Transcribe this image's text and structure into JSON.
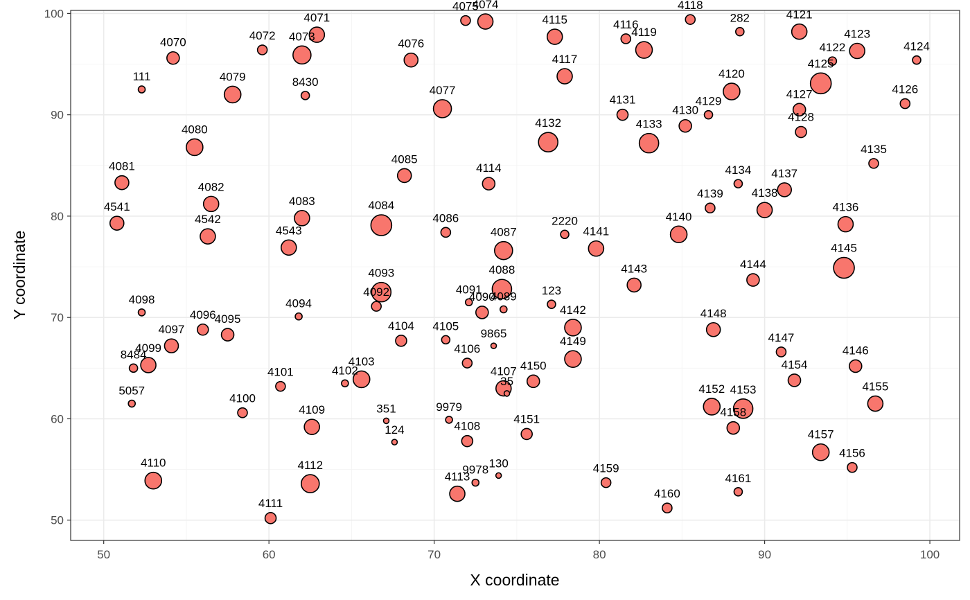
{
  "chart_data": {
    "type": "scatter",
    "title": "",
    "xlabel": "X coordinate",
    "ylabel": "Y coordinate",
    "xlim": [
      48,
      101.8
    ],
    "ylim": [
      48,
      100.3
    ],
    "xticks": [
      50,
      60,
      70,
      80,
      90,
      100
    ],
    "yticks": [
      50,
      60,
      70,
      80,
      90,
      100
    ],
    "grid": true,
    "marker_color": "#f8766d",
    "marker_edge": "#000000",
    "points": [
      {
        "label": "4075",
        "x": 71.9,
        "y": 99.3,
        "r": 7
      },
      {
        "label": "4074",
        "x": 73.1,
        "y": 99.2,
        "r": 11
      },
      {
        "label": "4118",
        "x": 85.5,
        "y": 99.4,
        "r": 7
      },
      {
        "label": "282",
        "x": 88.5,
        "y": 98.2,
        "r": 6
      },
      {
        "label": "4121",
        "x": 92.1,
        "y": 98.2,
        "r": 11
      },
      {
        "label": "4071",
        "x": 62.9,
        "y": 97.9,
        "r": 11
      },
      {
        "label": "4115",
        "x": 77.3,
        "y": 97.7,
        "r": 11
      },
      {
        "label": "4116",
        "x": 81.6,
        "y": 97.5,
        "r": 7
      },
      {
        "label": "4070",
        "x": 54.2,
        "y": 95.6,
        "r": 9
      },
      {
        "label": "4072",
        "x": 59.6,
        "y": 96.4,
        "r": 7
      },
      {
        "label": "4073",
        "x": 62.0,
        "y": 95.9,
        "r": 13
      },
      {
        "label": "4076",
        "x": 68.6,
        "y": 95.4,
        "r": 10
      },
      {
        "label": "4119",
        "x": 82.7,
        "y": 96.4,
        "r": 12
      },
      {
        "label": "4122",
        "x": 94.1,
        "y": 95.3,
        "r": 6
      },
      {
        "label": "4123",
        "x": 95.6,
        "y": 96.3,
        "r": 11
      },
      {
        "label": "4124",
        "x": 99.2,
        "y": 95.4,
        "r": 6
      },
      {
        "label": "4117",
        "x": 77.9,
        "y": 93.8,
        "r": 11
      },
      {
        "label": "111",
        "x": 52.3,
        "y": 92.5,
        "r": 5
      },
      {
        "label": "4079",
        "x": 57.8,
        "y": 92.0,
        "r": 12
      },
      {
        "label": "8430",
        "x": 62.2,
        "y": 91.9,
        "r": 6
      },
      {
        "label": "4120",
        "x": 88.0,
        "y": 92.3,
        "r": 12
      },
      {
        "label": "4125",
        "x": 93.4,
        "y": 93.1,
        "r": 15
      },
      {
        "label": "4077",
        "x": 70.5,
        "y": 90.6,
        "r": 13
      },
      {
        "label": "4131",
        "x": 81.4,
        "y": 90.0,
        "r": 8
      },
      {
        "label": "4129",
        "x": 86.6,
        "y": 90.0,
        "r": 6
      },
      {
        "label": "4127",
        "x": 92.1,
        "y": 90.5,
        "r": 9
      },
      {
        "label": "4126",
        "x": 98.5,
        "y": 91.1,
        "r": 7
      },
      {
        "label": "4130",
        "x": 85.2,
        "y": 88.9,
        "r": 9
      },
      {
        "label": "4128",
        "x": 92.2,
        "y": 88.3,
        "r": 8
      },
      {
        "label": "4080",
        "x": 55.5,
        "y": 86.8,
        "r": 12
      },
      {
        "label": "4132",
        "x": 76.9,
        "y": 87.3,
        "r": 14
      },
      {
        "label": "4133",
        "x": 83.0,
        "y": 87.2,
        "r": 14
      },
      {
        "label": "4135",
        "x": 96.6,
        "y": 85.2,
        "r": 7
      },
      {
        "label": "4085",
        "x": 68.2,
        "y": 84.0,
        "r": 10
      },
      {
        "label": "4114",
        "x": 73.3,
        "y": 83.2,
        "r": 9
      },
      {
        "label": "4081",
        "x": 51.1,
        "y": 83.3,
        "r": 10
      },
      {
        "label": "4134",
        "x": 88.4,
        "y": 83.2,
        "r": 6
      },
      {
        "label": "4137",
        "x": 91.2,
        "y": 82.6,
        "r": 10
      },
      {
        "label": "4082",
        "x": 56.5,
        "y": 81.2,
        "r": 11
      },
      {
        "label": "4139",
        "x": 86.7,
        "y": 80.8,
        "r": 7
      },
      {
        "label": "4138",
        "x": 90.0,
        "y": 80.6,
        "r": 11
      },
      {
        "label": "4541",
        "x": 50.8,
        "y": 79.3,
        "r": 10
      },
      {
        "label": "4083",
        "x": 62.0,
        "y": 79.8,
        "r": 11
      },
      {
        "label": "4084",
        "x": 66.8,
        "y": 79.1,
        "r": 15
      },
      {
        "label": "4136",
        "x": 94.9,
        "y": 79.2,
        "r": 11
      },
      {
        "label": "4542",
        "x": 56.3,
        "y": 78.0,
        "r": 11
      },
      {
        "label": "4086",
        "x": 70.7,
        "y": 78.4,
        "r": 7
      },
      {
        "label": "2220",
        "x": 77.9,
        "y": 78.2,
        "r": 6
      },
      {
        "label": "4140",
        "x": 84.8,
        "y": 78.2,
        "r": 12
      },
      {
        "label": "4543",
        "x": 61.2,
        "y": 76.9,
        "r": 11
      },
      {
        "label": "4087",
        "x": 74.2,
        "y": 76.6,
        "r": 13
      },
      {
        "label": "4141",
        "x": 79.8,
        "y": 76.8,
        "r": 11
      },
      {
        "label": "4145",
        "x": 94.8,
        "y": 74.9,
        "r": 15
      },
      {
        "label": "4144",
        "x": 89.3,
        "y": 73.7,
        "r": 9
      },
      {
        "label": "4143",
        "x": 82.1,
        "y": 73.2,
        "r": 10
      },
      {
        "label": "4093",
        "x": 66.8,
        "y": 72.5,
        "r": 14
      },
      {
        "label": "4088",
        "x": 74.1,
        "y": 72.8,
        "r": 14
      },
      {
        "label": "4091",
        "x": 72.1,
        "y": 71.5,
        "r": 5
      },
      {
        "label": "4092",
        "x": 66.5,
        "y": 71.1,
        "r": 7
      },
      {
        "label": "123",
        "x": 77.1,
        "y": 71.3,
        "r": 6
      },
      {
        "label": "4089",
        "x": 74.2,
        "y": 70.8,
        "r": 5
      },
      {
        "label": "4090",
        "x": 72.9,
        "y": 70.5,
        "r": 9
      },
      {
        "label": "4098",
        "x": 52.3,
        "y": 70.5,
        "r": 5
      },
      {
        "label": "4094",
        "x": 61.8,
        "y": 70.1,
        "r": 5
      },
      {
        "label": "4142",
        "x": 78.4,
        "y": 69.0,
        "r": 12
      },
      {
        "label": "4148",
        "x": 86.9,
        "y": 68.8,
        "r": 10
      },
      {
        "label": "4096",
        "x": 56.0,
        "y": 68.8,
        "r": 8
      },
      {
        "label": "4095",
        "x": 57.5,
        "y": 68.3,
        "r": 9
      },
      {
        "label": "4104",
        "x": 68.0,
        "y": 67.7,
        "r": 8
      },
      {
        "label": "4105",
        "x": 70.7,
        "y": 67.8,
        "r": 6
      },
      {
        "label": "9865",
        "x": 73.6,
        "y": 67.2,
        "r": 4
      },
      {
        "label": "4097",
        "x": 54.1,
        "y": 67.2,
        "r": 10
      },
      {
        "label": "4147",
        "x": 91.0,
        "y": 66.6,
        "r": 7
      },
      {
        "label": "4149",
        "x": 78.4,
        "y": 65.9,
        "r": 12
      },
      {
        "label": "4106",
        "x": 72.0,
        "y": 65.5,
        "r": 7
      },
      {
        "label": "4099",
        "x": 52.7,
        "y": 65.3,
        "r": 11
      },
      {
        "label": "8484",
        "x": 51.8,
        "y": 65.0,
        "r": 6
      },
      {
        "label": "4146",
        "x": 95.5,
        "y": 65.2,
        "r": 9
      },
      {
        "label": "4103",
        "x": 65.6,
        "y": 63.9,
        "r": 12
      },
      {
        "label": "4150",
        "x": 76.0,
        "y": 63.7,
        "r": 9
      },
      {
        "label": "4154",
        "x": 91.8,
        "y": 63.8,
        "r": 9
      },
      {
        "label": "4102",
        "x": 64.6,
        "y": 63.5,
        "r": 5
      },
      {
        "label": "4101",
        "x": 60.7,
        "y": 63.2,
        "r": 7
      },
      {
        "label": "4107",
        "x": 74.2,
        "y": 63.0,
        "r": 11
      },
      {
        "label": "35",
        "x": 74.4,
        "y": 62.5,
        "r": 4
      },
      {
        "label": "5057",
        "x": 51.7,
        "y": 61.5,
        "r": 5
      },
      {
        "label": "4155",
        "x": 96.7,
        "y": 61.5,
        "r": 11
      },
      {
        "label": "4152",
        "x": 86.8,
        "y": 61.2,
        "r": 12
      },
      {
        "label": "4153",
        "x": 88.7,
        "y": 61.0,
        "r": 14
      },
      {
        "label": "4100",
        "x": 58.4,
        "y": 60.6,
        "r": 7
      },
      {
        "label": "9979",
        "x": 70.9,
        "y": 59.9,
        "r": 5
      },
      {
        "label": "351",
        "x": 67.1,
        "y": 59.8,
        "r": 4
      },
      {
        "label": "4109",
        "x": 62.6,
        "y": 59.2,
        "r": 11
      },
      {
        "label": "4158",
        "x": 88.1,
        "y": 59.1,
        "r": 9
      },
      {
        "label": "4151",
        "x": 75.6,
        "y": 58.5,
        "r": 8
      },
      {
        "label": "4108",
        "x": 72.0,
        "y": 57.8,
        "r": 8
      },
      {
        "label": "124",
        "x": 67.6,
        "y": 57.7,
        "r": 4
      },
      {
        "label": "4157",
        "x": 93.4,
        "y": 56.7,
        "r": 12
      },
      {
        "label": "4156",
        "x": 95.3,
        "y": 55.2,
        "r": 7
      },
      {
        "label": "130",
        "x": 73.9,
        "y": 54.4,
        "r": 4
      },
      {
        "label": "4110",
        "x": 53.0,
        "y": 53.9,
        "r": 12
      },
      {
        "label": "9978",
        "x": 72.5,
        "y": 53.7,
        "r": 5
      },
      {
        "label": "4159",
        "x": 80.4,
        "y": 53.7,
        "r": 7
      },
      {
        "label": "4112",
        "x": 62.5,
        "y": 53.6,
        "r": 13
      },
      {
        "label": "4161",
        "x": 88.4,
        "y": 52.8,
        "r": 6
      },
      {
        "label": "4113",
        "x": 71.4,
        "y": 52.6,
        "r": 11
      },
      {
        "label": "4160",
        "x": 84.1,
        "y": 51.2,
        "r": 7
      },
      {
        "label": "4111",
        "x": 60.1,
        "y": 50.2,
        "r": 8
      }
    ]
  }
}
